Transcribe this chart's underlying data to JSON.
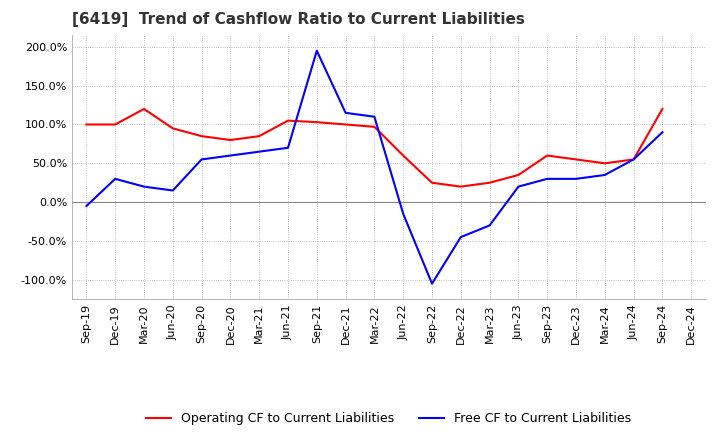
{
  "title": "[6419]  Trend of Cashflow Ratio to Current Liabilities",
  "x_labels": [
    "Sep-19",
    "Dec-19",
    "Mar-20",
    "Jun-20",
    "Sep-20",
    "Dec-20",
    "Mar-21",
    "Jun-21",
    "Sep-21",
    "Dec-21",
    "Mar-22",
    "Jun-22",
    "Sep-22",
    "Dec-22",
    "Mar-23",
    "Jun-23",
    "Sep-23",
    "Dec-23",
    "Mar-24",
    "Jun-24",
    "Sep-24",
    "Dec-24"
  ],
  "operating_cf": [
    100.0,
    100.0,
    120.0,
    95.0,
    85.0,
    80.0,
    85.0,
    105.0,
    103.0,
    100.0,
    97.0,
    60.0,
    25.0,
    20.0,
    25.0,
    35.0,
    60.0,
    55.0,
    50.0,
    55.0,
    120.0,
    null
  ],
  "free_cf": [
    -5.0,
    30.0,
    20.0,
    15.0,
    55.0,
    60.0,
    65.0,
    70.0,
    195.0,
    115.0,
    110.0,
    -15.0,
    -105.0,
    -45.0,
    -30.0,
    20.0,
    30.0,
    30.0,
    35.0,
    55.0,
    90.0,
    null
  ],
  "operating_color": "#ff0000",
  "free_color": "#0000ff",
  "ylim": [
    -125.0,
    215.0
  ],
  "yticks": [
    -100.0,
    -50.0,
    0.0,
    50.0,
    100.0,
    150.0,
    200.0
  ],
  "background_color": "#ffffff",
  "grid_color": "#aaaaaa",
  "title_fontsize": 11,
  "legend_labels": [
    "Operating CF to Current Liabilities",
    "Free CF to Current Liabilities"
  ]
}
